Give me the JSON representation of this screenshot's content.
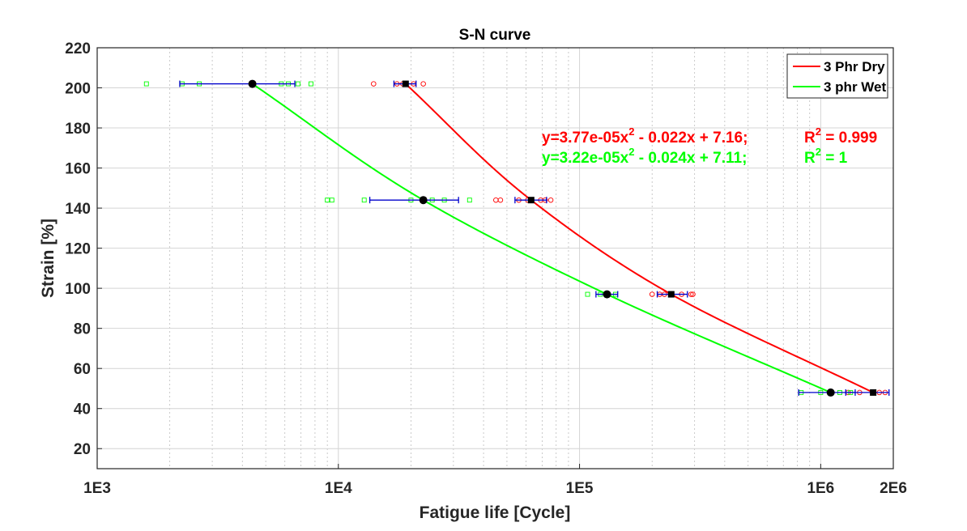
{
  "chart_data": {
    "type": "scatter",
    "title": "S-N curve",
    "xlabel": "Fatigue life [Cycle]",
    "ylabel": "Strain [%]",
    "xscale": "log",
    "xlim": [
      1000,
      2000000
    ],
    "ylim": [
      10,
      220
    ],
    "grid": true,
    "legend_position": "top-right",
    "x_ticks": [
      {
        "value": 1000,
        "label": "1E3"
      },
      {
        "value": 10000,
        "label": "1E4"
      },
      {
        "value": 100000,
        "label": "1E5"
      },
      {
        "value": 1000000,
        "label": "1E6"
      },
      {
        "value": 2000000,
        "label": "2E6"
      }
    ],
    "y_ticks": [
      20,
      40,
      60,
      80,
      100,
      120,
      140,
      160,
      180,
      200,
      220
    ],
    "series": [
      {
        "name": "3 Phr Dry",
        "color": "#ff0000",
        "mean_marker": "square",
        "means": [
          {
            "strain": 202,
            "cycles": 19000,
            "err_low": 17000,
            "err_high": 21000
          },
          {
            "strain": 144,
            "cycles": 63000,
            "err_low": 54000,
            "err_high": 73000
          },
          {
            "strain": 97,
            "cycles": 240000,
            "err_low": 210000,
            "err_high": 280000
          },
          {
            "strain": 48,
            "cycles": 1650000,
            "err_low": 1270000,
            "err_high": 1920000
          }
        ],
        "samples": [
          {
            "strain": 202,
            "cycles": [
              14000,
              17500,
              18500,
              20500,
              22500
            ]
          },
          {
            "strain": 144,
            "cycles": [
              45000,
              47000,
              56000,
              61000,
              69000,
              72000,
              76000
            ]
          },
          {
            "strain": 97,
            "cycles": [
              200000,
              215000,
              225000,
              265000,
              290000,
              295000
            ]
          },
          {
            "strain": 48,
            "cycles": [
              1300000,
              1450000,
              1650000,
              1750000,
              1850000
            ]
          }
        ]
      },
      {
        "name": "3 phr Wet",
        "color": "#00ff00",
        "mean_marker": "circle",
        "means": [
          {
            "strain": 202,
            "cycles": 4400,
            "err_low": 2200,
            "err_high": 6600
          },
          {
            "strain": 144,
            "cycles": 22500,
            "err_low": 13500,
            "err_high": 31500
          },
          {
            "strain": 97,
            "cycles": 130000,
            "err_low": 117000,
            "err_high": 144000
          },
          {
            "strain": 48,
            "cycles": 1100000,
            "err_low": 810000,
            "err_high": 1390000
          }
        ],
        "samples": [
          {
            "strain": 202,
            "cycles": [
              1600,
              2250,
              2650,
              5800,
              6200,
              6800,
              7700
            ]
          },
          {
            "strain": 144,
            "cycles": [
              9000,
              9400,
              12800,
              20000,
              24500,
              27500,
              35000
            ]
          },
          {
            "strain": 97,
            "cycles": [
              108000,
              122000,
              130000,
              141000
            ]
          },
          {
            "strain": 48,
            "cycles": [
              830000,
              1000000,
              1200000,
              1330000
            ]
          }
        ]
      }
    ],
    "fit_curves": [
      {
        "series": "3 Phr Dry",
        "color": "#ff0000",
        "points": [
          {
            "strain": 48,
            "cycles": 1650000
          },
          {
            "strain": 97,
            "cycles": 240000
          },
          {
            "strain": 144,
            "cycles": 63000
          },
          {
            "strain": 202,
            "cycles": 19000
          }
        ]
      },
      {
        "series": "3 phr Wet",
        "color": "#00ff00",
        "points": [
          {
            "strain": 48,
            "cycles": 1100000
          },
          {
            "strain": 97,
            "cycles": 130000
          },
          {
            "strain": 144,
            "cycles": 22500
          },
          {
            "strain": 202,
            "cycles": 4400
          }
        ]
      }
    ],
    "annotations": [
      {
        "color": "#ff0000",
        "eq_main": "y=3.77e-05x",
        "eq_exp": "2",
        "eq_rest": " - 0.022x + 7.16;",
        "r2_label": "R",
        "r2_exp": "2",
        "r2_value": " = 0.999"
      },
      {
        "color": "#00ff00",
        "eq_main": "y=3.22e-05x",
        "eq_exp": "2",
        "eq_rest": " - 0.024x + 7.11;",
        "r2_label": "R",
        "r2_exp": "2",
        "r2_value": " = 1"
      }
    ],
    "errorbar_color": "#0000cc"
  }
}
